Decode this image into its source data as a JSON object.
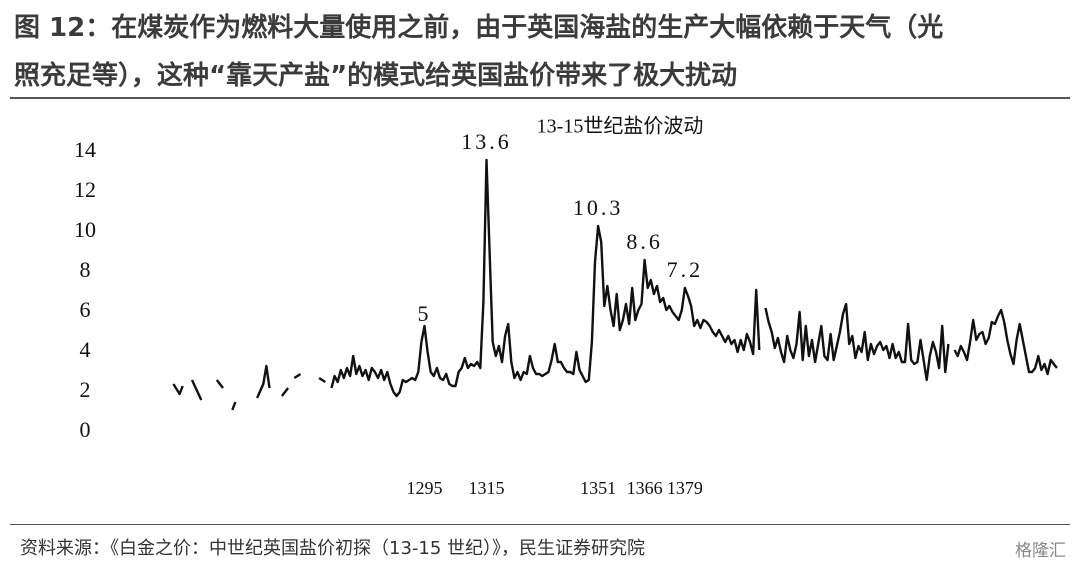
{
  "header": {
    "title_lines": [
      "图 12：在煤炭作为燃料大量使用之前，由于英国海盐的生产大幅依赖于天气（光",
      "照充足等），这种“靠天产盐”的模式给英国盐价带来了极大扰动"
    ]
  },
  "chart_data": {
    "type": "line",
    "title": "13-15世纪盐价波动",
    "x": [
      1214,
      1216,
      1217,
      1218,
      1220,
      1223,
      1225,
      1228,
      1230,
      1231,
      1233,
      1234,
      1236,
      1241,
      1243,
      1244,
      1245,
      1247,
      1249,
      1251,
      1252,
      1253,
      1255,
      1257,
      1261,
      1263,
      1264,
      1265,
      1266,
      1267,
      1268,
      1269,
      1270,
      1271,
      1272,
      1273,
      1274,
      1275,
      1276,
      1277,
      1278,
      1279,
      1280,
      1281,
      1282,
      1283,
      1284,
      1285,
      1286,
      1287,
      1288,
      1289,
      1290,
      1291,
      1292,
      1293,
      1294,
      1295,
      1296,
      1297,
      1298,
      1299,
      1300,
      1301,
      1302,
      1303,
      1304,
      1305,
      1306,
      1307,
      1308,
      1309,
      1310,
      1311,
      1312,
      1313,
      1314,
      1315,
      1316,
      1317,
      1318,
      1319,
      1320,
      1321,
      1322,
      1323,
      1324,
      1325,
      1326,
      1327,
      1328,
      1329,
      1330,
      1331,
      1332,
      1333,
      1334,
      1335,
      1336,
      1337,
      1338,
      1339,
      1340,
      1341,
      1342,
      1343,
      1344,
      1345,
      1346,
      1347,
      1348,
      1349,
      1350,
      1351,
      1352,
      1353,
      1354,
      1355,
      1356,
      1357,
      1358,
      1359,
      1360,
      1361,
      1362,
      1363,
      1364,
      1365,
      1366,
      1367,
      1368,
      1369,
      1370,
      1371,
      1372,
      1373,
      1374,
      1375,
      1376,
      1377,
      1378,
      1379,
      1380,
      1381,
      1382,
      1383,
      1384,
      1385,
      1386,
      1387,
      1388,
      1389,
      1390,
      1391,
      1392,
      1393,
      1394,
      1395,
      1396,
      1397,
      1398,
      1399,
      1400,
      1401,
      1402,
      1403,
      1404,
      1405,
      1406,
      1407,
      1408,
      1409,
      1410,
      1411,
      1412,
      1413,
      1414,
      1415,
      1416,
      1417,
      1418,
      1419,
      1420,
      1421,
      1422,
      1423,
      1424,
      1425,
      1426,
      1427,
      1428,
      1429,
      1430,
      1431,
      1432,
      1433,
      1434,
      1435,
      1436,
      1437,
      1438,
      1439,
      1440,
      1441,
      1442,
      1443,
      1444,
      1445,
      1446,
      1447,
      1448,
      1449,
      1450,
      1451,
      1452,
      1453,
      1454,
      1455,
      1456,
      1457,
      1458,
      1459,
      1460,
      1461,
      1462,
      1463,
      1464,
      1465,
      1466,
      1467,
      1468,
      1469,
      1470,
      1471,
      1472,
      1473,
      1474,
      1475,
      1476,
      1477,
      1478,
      1479,
      1480,
      1481,
      1482,
      1483,
      1484,
      1485,
      1486,
      1487,
      1488,
      1489,
      1490,
      1491,
      1492,
      1493,
      1494,
      1495,
      1496,
      1497,
      1498,
      1499
    ],
    "series": [
      {
        "color": "#111111",
        "values": [
          2.4,
          1.9,
          2.3,
          null,
          2.6,
          1.6,
          null,
          2.6,
          2.2,
          null,
          1.1,
          1.5,
          null,
          1.7,
          2.4,
          3.3,
          2.2,
          null,
          1.8,
          2.2,
          null,
          2.7,
          2.9,
          null,
          2.7,
          2.5,
          null,
          2.2,
          2.8,
          2.5,
          3.1,
          2.7,
          3.2,
          2.8,
          3.8,
          2.9,
          3.3,
          2.8,
          3.1,
          2.6,
          3.2,
          3.0,
          2.7,
          3.1,
          2.6,
          3.0,
          2.4,
          2.0,
          1.8,
          2.0,
          2.6,
          2.5,
          2.6,
          2.7,
          2.6,
          3.0,
          4.5,
          5.3,
          4.0,
          3.0,
          2.8,
          3.2,
          2.7,
          2.6,
          2.9,
          2.4,
          2.3,
          2.3,
          3.0,
          3.2,
          3.7,
          3.2,
          3.4,
          3.3,
          3.5,
          3.2,
          6.5,
          13.6,
          9.0,
          4.5,
          3.8,
          4.3,
          3.5,
          4.8,
          5.4,
          3.5,
          2.7,
          3.0,
          2.6,
          3.0,
          2.9,
          3.8,
          3.2,
          2.9,
          2.9,
          2.8,
          2.9,
          3.0,
          3.6,
          4.4,
          3.5,
          3.5,
          3.2,
          3.0,
          3.0,
          2.9,
          4.0,
          3.1,
          2.8,
          2.5,
          2.6,
          4.5,
          8.5,
          10.3,
          9.5,
          6.3,
          7.3,
          6.1,
          5.3,
          6.9,
          5.1,
          5.6,
          6.4,
          5.4,
          7.2,
          5.6,
          6.1,
          6.4,
          8.6,
          7.2,
          7.6,
          6.9,
          7.3,
          6.5,
          6.7,
          6.1,
          6.3,
          6.0,
          5.8,
          5.6,
          6.1,
          7.2,
          6.8,
          6.3,
          5.3,
          5.6,
          5.2,
          5.6,
          5.5,
          5.3,
          5.0,
          4.8,
          5.1,
          4.8,
          4.5,
          4.8,
          4.4,
          4.6,
          4.0,
          4.6,
          4.1,
          4.9,
          4.5,
          3.9,
          7.1,
          4.1,
          null,
          6.2,
          5.5,
          5.0,
          4.2,
          4.7,
          4.0,
          3.5,
          4.8,
          4.1,
          3.7,
          4.4,
          6.0,
          3.6,
          5.3,
          3.8,
          4.6,
          3.5,
          4.4,
          5.3,
          3.8,
          3.6,
          4.9,
          3.6,
          4.3,
          5.0,
          5.9,
          6.4,
          4.4,
          4.8,
          3.7,
          4.3,
          4.0,
          5.0,
          3.6,
          4.4,
          3.9,
          4.3,
          4.5,
          4.1,
          4.3,
          3.7,
          4.4,
          3.7,
          4.0,
          3.5,
          3.5,
          5.4,
          3.6,
          3.4,
          3.5,
          4.6,
          3.6,
          2.6,
          3.8,
          4.5,
          4.0,
          3.2,
          5.3,
          3.0,
          4.4,
          null,
          4.1,
          3.8,
          4.3,
          4.0,
          3.6,
          4.5,
          5.6,
          4.6,
          4.9,
          5.0,
          4.4,
          4.7,
          5.5,
          5.4,
          5.8,
          6.1,
          5.5,
          4.6,
          3.9,
          3.4,
          4.6,
          5.4,
          4.6,
          3.8,
          3.0,
          3.0,
          3.2,
          3.8,
          3.1,
          3.4,
          2.9,
          3.6,
          3.4,
          3.2
        ]
      }
    ],
    "annotations": [
      {
        "x": 1295,
        "y": 5,
        "label": "5"
      },
      {
        "x": 1315,
        "y": 13.6,
        "label": "13.6"
      },
      {
        "x": 1351,
        "y": 10.3,
        "label": "10.3"
      },
      {
        "x": 1366,
        "y": 8.6,
        "label": "8.6"
      },
      {
        "x": 1379,
        "y": 7.2,
        "label": "7.2"
      }
    ],
    "xlim": [
      1200,
      1500
    ],
    "xticks": [
      1295,
      1315,
      1351,
      1366,
      1379
    ],
    "ylim": [
      0,
      14
    ],
    "yticks": [
      0,
      2,
      4,
      6,
      8,
      10,
      12,
      14
    ],
    "grid": false
  },
  "footer": {
    "source": "资料来源：《白金之价：中世纪英国盐价初探（13-15 世纪）》，民生证券研究院",
    "watermark": "格隆汇"
  }
}
